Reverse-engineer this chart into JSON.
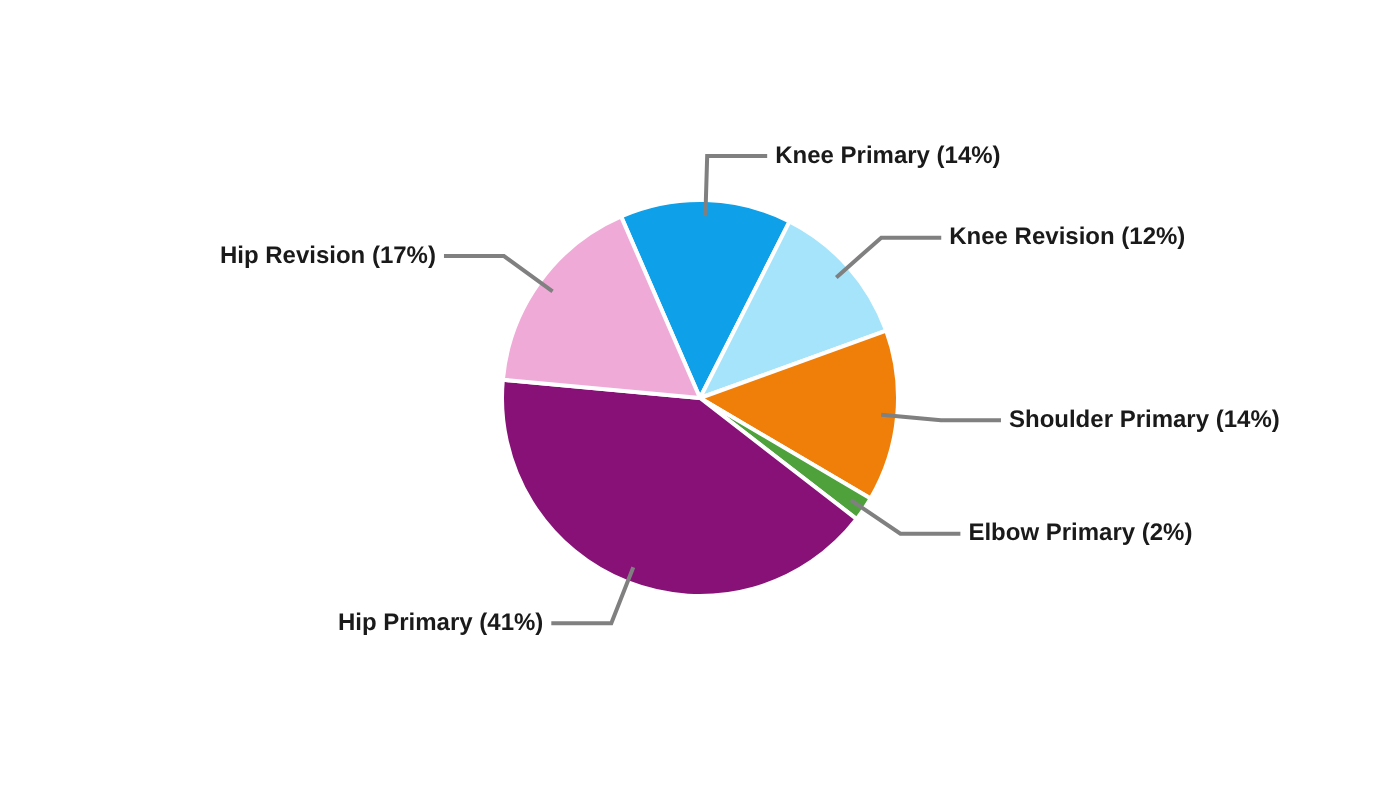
{
  "chart_data": {
    "type": "pie",
    "categories": [
      "Knee Primary (14%)",
      "Knee Revision (12%)",
      "Shoulder Primary (14%)",
      "Elbow Primary (2%)",
      "Hip Primary (41%)",
      "Hip Revision (17%)"
    ],
    "values": [
      14,
      12,
      14,
      2,
      41,
      17
    ],
    "colors": [
      "#0ea0e8",
      "#a6e4fb",
      "#f07f09",
      "#4ea13b",
      "#871177",
      "#f0aad8"
    ],
    "legend": false
  }
}
